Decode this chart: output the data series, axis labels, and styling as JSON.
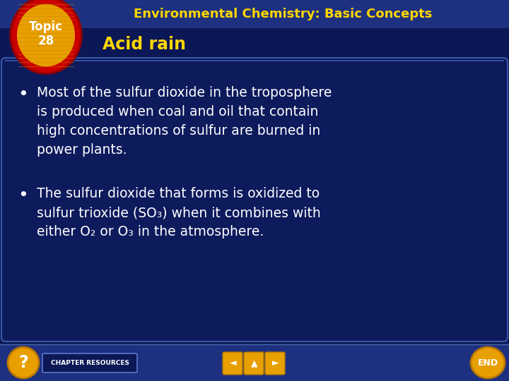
{
  "bg_color": "#0c1756",
  "header_bg_color": "#1e3080",
  "title_text": "Environmental Chemistry: Basic Concepts",
  "title_color": "#ffd700",
  "subtitle_text": "Acid rain",
  "subtitle_color": "#ffd700",
  "topic_label": "Topic\n28",
  "topic_text_color": "#ffffff",
  "topic_ellipse_outer": "#cc0000",
  "topic_ellipse_inner": "#e8a000",
  "body_bg_color": "#0d1a5c",
  "body_text_color": "#ffffff",
  "bullet1_lines": [
    "Most of the sulfur dioxide in the troposphere",
    "is produced when coal and oil that contain",
    "high concentrations of sulfur are burned in",
    "power plants."
  ],
  "bullet2_lines": [
    "The sulfur dioxide that forms is oxidized to",
    "sulfur trioxide (SO₃) when it combines with",
    "either O₂ or O₃ in the atmosphere."
  ],
  "footer_bg": "#1e3080",
  "footer_text": "CHAPTER RESOURCES",
  "fig_width": 7.2,
  "fig_height": 5.4,
  "dpi": 100
}
